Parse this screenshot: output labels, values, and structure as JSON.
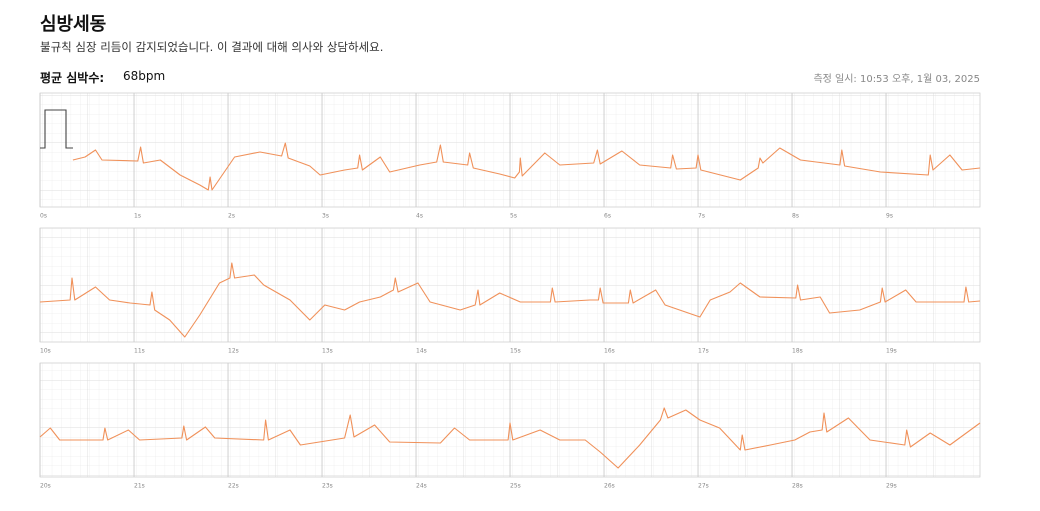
{
  "header": {
    "title": "심방세동",
    "subtitle": "불규칙 심장 리듬이 감지되었습니다. 이 결과에 대해 의사와 상담하세요.",
    "avg_label": "평균 심박수:",
    "avg_value": "68bpm",
    "measured": "측정 일시: 10:53 오후, 1월 03, 2025"
  },
  "chart_data": [
    {
      "type": "line",
      "color": "#f0915a",
      "grid": true,
      "xlim": [
        0,
        10
      ],
      "ylim": [
        -57,
        57
      ],
      "xticks": [
        {
          "value": 0,
          "label": "0s"
        },
        {
          "value": 1,
          "label": "1s"
        },
        {
          "value": 2,
          "label": "2s"
        },
        {
          "value": 3,
          "label": "3s"
        },
        {
          "value": 4,
          "label": "4s"
        },
        {
          "value": 5,
          "label": "5s"
        },
        {
          "value": 6,
          "label": "6s"
        },
        {
          "value": 7,
          "label": "7s"
        },
        {
          "value": 8,
          "label": "8s"
        },
        {
          "value": 9,
          "label": "9s"
        }
      ],
      "x": [
        0.35,
        0.48,
        0.59,
        0.66,
        1.04,
        1.07,
        1.1,
        1.28,
        1.49,
        1.7,
        1.79,
        1.81,
        1.83,
        2.07,
        2.34,
        2.57,
        2.61,
        2.64,
        2.87,
        2.98,
        3.24,
        3.38,
        3.4,
        3.43,
        3.62,
        3.72,
        4.04,
        4.22,
        4.26,
        4.29,
        4.55,
        4.57,
        4.61,
        4.89,
        5.05,
        5.1,
        5.11,
        5.13,
        5.37,
        5.53,
        5.89,
        5.93,
        5.96,
        6.19,
        6.38,
        6.71,
        6.73,
        6.77,
        6.98,
        7.0,
        7.03,
        7.45,
        7.64,
        7.66,
        7.69,
        7.87,
        8.09,
        8.51,
        8.53,
        8.56,
        8.94,
        9.45,
        9.47,
        9.5,
        9.68,
        9.81,
        10.0
      ],
      "values": [
        -10,
        -7,
        0,
        -10,
        -11,
        3,
        -13,
        -10,
        -25,
        -35,
        -40,
        -27,
        -40,
        -7,
        -2,
        -6,
        7,
        -8,
        -16,
        -25,
        -20,
        -18,
        -5,
        -20,
        -7,
        -22,
        -15,
        -12,
        5,
        -12,
        -15,
        -3,
        -18,
        -24,
        -28,
        -22,
        -8,
        -26,
        -3,
        -15,
        -13,
        0,
        -14,
        -1,
        -15,
        -18,
        -5,
        -19,
        -18,
        -5,
        -20,
        -30,
        -18,
        -8,
        -13,
        2,
        -10,
        -15,
        0,
        -16,
        -22,
        -25,
        -5,
        -20,
        -5,
        -20,
        -18
      ]
    },
    {
      "type": "line",
      "color": "#f0915a",
      "grid": true,
      "xlim": [
        10,
        20
      ],
      "ylim": [
        -57,
        57
      ],
      "xticks": [
        {
          "value": 10,
          "label": "10s"
        },
        {
          "value": 11,
          "label": "11s"
        },
        {
          "value": 12,
          "label": "12s"
        },
        {
          "value": 13,
          "label": "13s"
        },
        {
          "value": 14,
          "label": "14s"
        },
        {
          "value": 15,
          "label": "15s"
        },
        {
          "value": 16,
          "label": "16s"
        },
        {
          "value": 17,
          "label": "17s"
        },
        {
          "value": 18,
          "label": "18s"
        },
        {
          "value": 19,
          "label": "19s"
        }
      ],
      "x": [
        10.0,
        10.32,
        10.34,
        10.37,
        10.59,
        10.74,
        10.96,
        11.17,
        11.19,
        11.22,
        11.38,
        11.54,
        11.7,
        11.91,
        12.02,
        12.04,
        12.07,
        12.28,
        12.38,
        12.66,
        12.87,
        13.03,
        13.24,
        13.4,
        13.62,
        13.76,
        13.78,
        13.81,
        14.02,
        14.15,
        14.47,
        14.63,
        14.66,
        14.68,
        14.89,
        15.11,
        15.43,
        15.45,
        15.48,
        15.85,
        15.94,
        15.96,
        15.99,
        16.26,
        16.28,
        16.31,
        16.55,
        16.65,
        17.02,
        17.13,
        17.34,
        17.45,
        17.66,
        18.04,
        18.06,
        18.09,
        18.3,
        18.4,
        18.72,
        18.94,
        18.96,
        18.99,
        19.21,
        19.32,
        19.83,
        19.85,
        19.88,
        20.0
      ],
      "values": [
        -17,
        -15,
        7,
        -15,
        -2,
        -15,
        -18,
        -20,
        -7,
        -25,
        -35,
        -52,
        -30,
        2,
        7,
        22,
        7,
        10,
        0,
        -15,
        -35,
        -20,
        -25,
        -17,
        -12,
        -5,
        7,
        -7,
        2,
        -17,
        -25,
        -20,
        -5,
        -20,
        -8,
        -17,
        -17,
        -3,
        -17,
        -15,
        -15,
        -3,
        -18,
        -18,
        -5,
        -18,
        -5,
        -20,
        -32,
        -15,
        -7,
        2,
        -12,
        -13,
        0,
        -15,
        -12,
        -28,
        -25,
        -17,
        -3,
        -17,
        -5,
        -17,
        -17,
        -2,
        -17,
        -16
      ]
    },
    {
      "type": "line",
      "color": "#f0915a",
      "grid": true,
      "xlim": [
        20,
        30
      ],
      "ylim": [
        -57,
        57
      ],
      "xticks": [
        {
          "value": 20,
          "label": "20s"
        },
        {
          "value": 21,
          "label": "21s"
        },
        {
          "value": 22,
          "label": "22s"
        },
        {
          "value": 23,
          "label": "23s"
        },
        {
          "value": 24,
          "label": "24s"
        },
        {
          "value": 25,
          "label": "25s"
        },
        {
          "value": 26,
          "label": "26s"
        },
        {
          "value": 27,
          "label": "27s"
        },
        {
          "value": 28,
          "label": "28s"
        },
        {
          "value": 29,
          "label": "29s"
        }
      ],
      "x": [
        20.0,
        20.11,
        20.21,
        20.67,
        20.69,
        20.72,
        20.94,
        21.06,
        21.51,
        21.53,
        21.56,
        21.76,
        21.86,
        22.38,
        22.4,
        22.43,
        22.66,
        22.77,
        23.24,
        23.3,
        23.34,
        23.56,
        23.72,
        24.26,
        24.41,
        24.57,
        24.98,
        25.0,
        25.03,
        25.32,
        25.53,
        25.8,
        25.96,
        26.15,
        26.38,
        26.6,
        26.64,
        26.68,
        26.87,
        27.02,
        27.23,
        27.45,
        27.47,
        27.5,
        27.77,
        28.03,
        28.19,
        28.32,
        28.34,
        28.37,
        28.6,
        28.83,
        29.2,
        29.22,
        29.26,
        29.47,
        29.68,
        30.0
      ],
      "values": [
        -17,
        -8,
        -20,
        -20,
        -8,
        -20,
        -10,
        -20,
        -18,
        -6,
        -20,
        -7,
        -18,
        -20,
        0,
        -20,
        -10,
        -25,
        -18,
        5,
        -17,
        -5,
        -22,
        -23,
        -8,
        -20,
        -20,
        -3,
        -20,
        -10,
        -20,
        -20,
        -32,
        -48,
        -25,
        0,
        12,
        2,
        10,
        0,
        -8,
        -30,
        -15,
        -30,
        -25,
        -20,
        -12,
        -10,
        7,
        -12,
        2,
        -20,
        -25,
        -10,
        -27,
        -13,
        -25,
        -3
      ]
    }
  ]
}
